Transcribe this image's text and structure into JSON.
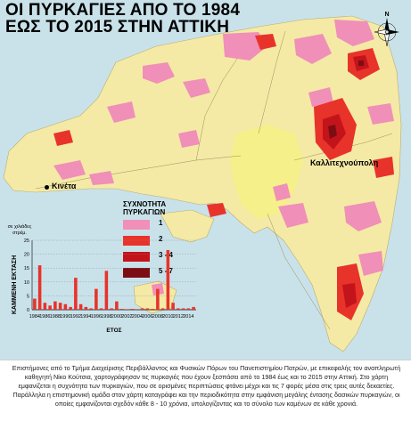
{
  "map": {
    "title_line1": "ΟΙ ΠΥΡΚΑΓΙΕΣ ΑΠΟ ΤΟ 1984",
    "title_line2": "ΕΩΣ ΤΟ 2015 ΣΤΗΝ ΑΤΤΙΚΗ",
    "places": {
      "kineta": "Κινέτα",
      "kalamos": "Καλλιτεχνούπολη"
    },
    "compass_icon": "compass-rose-icon",
    "colors": {
      "sea": "#c9e2ea",
      "land": "#f4eaa6",
      "urban": "#f6f08a",
      "freq_1": "#f08fb8",
      "freq_2": "#e8332a",
      "freq_3_4": "#c4141b",
      "freq_5_7": "#7c0d13"
    }
  },
  "legend": {
    "title_line1": "ΣΥΧΝΟΤΗΤΑ",
    "title_line2": "ΠΥΡΚΑΓΙΩΝ",
    "items": [
      {
        "label": "1",
        "color": "#f08fb8"
      },
      {
        "label": "2",
        "color": "#e8332a"
      },
      {
        "label": "3 - 4",
        "color": "#c4141b"
      },
      {
        "label": "5 - 7",
        "color": "#7c0d13"
      }
    ]
  },
  "chart_data": {
    "type": "bar",
    "unit_label_line1": "σε χιλιάδες",
    "unit_label_line2": "στρέμ.",
    "ylabel": "ΚΑΜΜΕΝΗ ΕΚΤΑΣΗ",
    "xlabel": "ΕΤΟΣ",
    "ylim": [
      0,
      25
    ],
    "yticks": [
      "0",
      "5",
      "10",
      "15",
      "20",
      "25"
    ],
    "xticks": [
      "1984",
      "1986",
      "1988",
      "1990",
      "1992",
      "1994",
      "1996",
      "1998",
      "2000",
      "2002",
      "2004",
      "2006",
      "2008",
      "2010",
      "2012",
      "2014"
    ],
    "bar_color": "#e8332a",
    "categories": [
      "1984",
      "1985",
      "1986",
      "1987",
      "1988",
      "1989",
      "1990",
      "1991",
      "1992",
      "1993",
      "1994",
      "1995",
      "1996",
      "1997",
      "1998",
      "1999",
      "2000",
      "2001",
      "2002",
      "2003",
      "2004",
      "2005",
      "2006",
      "2007",
      "2008",
      "2009",
      "2010",
      "2011",
      "2012",
      "2013",
      "2014",
      "2015"
    ],
    "values": [
      4,
      16,
      2.5,
      1.5,
      3,
      2.5,
      2,
      1,
      11.5,
      2,
      1,
      0.5,
      7.5,
      0.5,
      14,
      0.5,
      3,
      0.3,
      0.2,
      0.3,
      0.2,
      0.5,
      0.5,
      0.3,
      7.5,
      0.5,
      21.5,
      2.5,
      0.5,
      0.5,
      0.5,
      1
    ]
  },
  "caption": {
    "text": "Επιστήμονες από το Τμήμα Διαχείρισης Περιβάλλοντος και Φυσικών Πόρων του Πανεπιστημίου Πατρών, με επικεφαλής τον αναπληρωτή καθηγητή Νίκο Κούτσια, χαρτογράφησαν τις πυρκαγιές που έχουν ξεσπάσει από το 1984 έως και το 2015 στην Αττική. Στο χάρτη εμφανίζεται η συχνότητα των πυρκαγιών, που σε ορισμένες περιπτώσεις φτάνει μέχρι και τις 7 φορές μέσα στις τρεις αυτές δεκαετίες. Παράλληλα η επιστημονική ομάδα στον χάρτη καταγράφει και την περιοδικότητα στην εμφάνιση μεγάλης έντασης δασικών πυρκαγιών, οι οποίες εμφανίζονται σχεδόν κάθε 8 - 10 χρόνια, υπολογίζοντας και το σύνολο των καμένων σε κάθε χρονιά."
  }
}
